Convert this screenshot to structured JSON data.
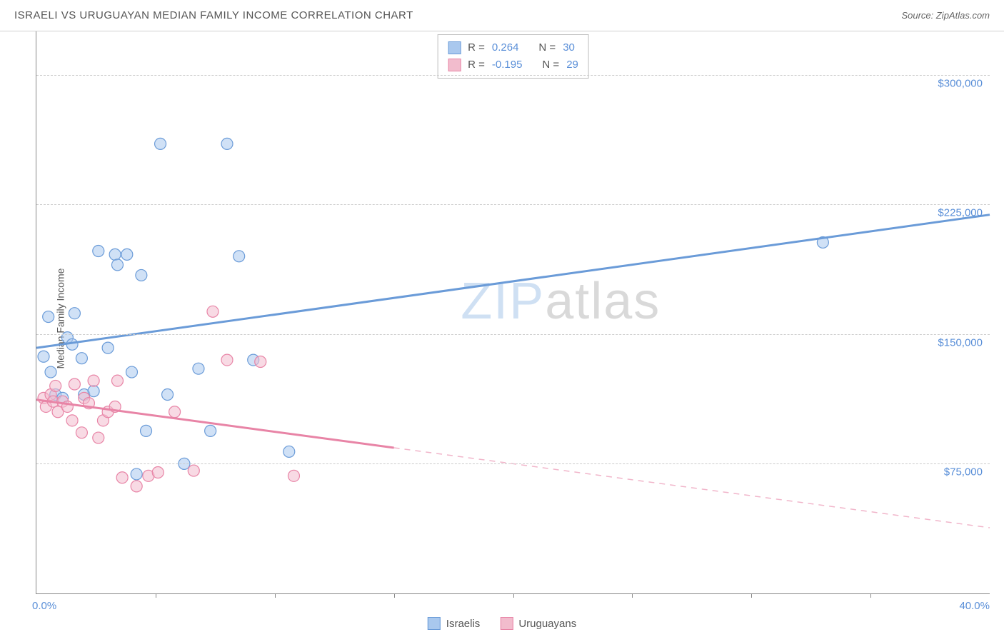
{
  "title": "ISRAELI VS URUGUAYAN MEDIAN FAMILY INCOME CORRELATION CHART",
  "source": "Source: ZipAtlas.com",
  "ylabel": "Median Family Income",
  "watermark": {
    "part1": "ZIP",
    "part2": "atlas"
  },
  "chart": {
    "type": "scatter-correlation",
    "background_color": "#ffffff",
    "grid_color": "#cccccc",
    "axis_color": "#888888",
    "label_color": "#555555",
    "tick_value_color": "#5a8fd8",
    "xlim": [
      0,
      40
    ],
    "ylim": [
      0,
      325000
    ],
    "x_unit": "%",
    "y_unit": "$",
    "point_radius": 8,
    "point_opacity": 0.55,
    "line_width": 3,
    "yticks": [
      {
        "value": 75000,
        "label": "$75,000"
      },
      {
        "value": 150000,
        "label": "$150,000"
      },
      {
        "value": 225000,
        "label": "$225,000"
      },
      {
        "value": 300000,
        "label": "$300,000"
      }
    ],
    "xtick_positions": [
      5,
      10,
      15,
      20,
      25,
      30,
      35
    ],
    "xaxis_start_label": "0.0%",
    "xaxis_end_label": "40.0%",
    "series": [
      {
        "name": "Israelis",
        "color_fill": "#a9c8ee",
        "color_stroke": "#6a9bd8",
        "r_value": "0.264",
        "n_value": "30",
        "trend": {
          "x1": 0,
          "y1": 142000,
          "x2": 40,
          "y2": 219000,
          "solid_end_x": 40
        },
        "points": [
          [
            0.3,
            137000
          ],
          [
            0.5,
            160000
          ],
          [
            0.6,
            128000
          ],
          [
            0.8,
            115000
          ],
          [
            1.1,
            113000
          ],
          [
            1.3,
            148000
          ],
          [
            1.6,
            162000
          ],
          [
            1.5,
            144000
          ],
          [
            1.9,
            136000
          ],
          [
            2.0,
            115000
          ],
          [
            2.6,
            198000
          ],
          [
            2.4,
            117000
          ],
          [
            3.0,
            142000
          ],
          [
            3.3,
            196000
          ],
          [
            3.4,
            190000
          ],
          [
            3.8,
            196000
          ],
          [
            4.0,
            128000
          ],
          [
            4.2,
            69000
          ],
          [
            4.4,
            184000
          ],
          [
            4.6,
            94000
          ],
          [
            5.2,
            260000
          ],
          [
            5.5,
            115000
          ],
          [
            6.2,
            75000
          ],
          [
            6.8,
            130000
          ],
          [
            7.3,
            94000
          ],
          [
            8.0,
            260000
          ],
          [
            8.5,
            195000
          ],
          [
            9.1,
            135000
          ],
          [
            10.6,
            82000
          ],
          [
            33.0,
            203000
          ]
        ]
      },
      {
        "name": "Uruguayans",
        "color_fill": "#f2bccd",
        "color_stroke": "#e884a6",
        "r_value": "-0.195",
        "n_value": "29",
        "trend": {
          "x1": 0,
          "y1": 112000,
          "x2": 40,
          "y2": 38000,
          "solid_end_x": 15
        },
        "points": [
          [
            0.3,
            113000
          ],
          [
            0.4,
            108000
          ],
          [
            0.6,
            115000
          ],
          [
            0.7,
            111000
          ],
          [
            0.8,
            120000
          ],
          [
            0.9,
            105000
          ],
          [
            1.1,
            111000
          ],
          [
            1.3,
            108000
          ],
          [
            1.5,
            100000
          ],
          [
            1.6,
            121000
          ],
          [
            1.9,
            93000
          ],
          [
            2.0,
            113000
          ],
          [
            2.2,
            110000
          ],
          [
            2.4,
            123000
          ],
          [
            2.6,
            90000
          ],
          [
            2.8,
            100000
          ],
          [
            3.0,
            105000
          ],
          [
            3.3,
            108000
          ],
          [
            3.4,
            123000
          ],
          [
            3.6,
            67000
          ],
          [
            4.2,
            62000
          ],
          [
            4.7,
            68000
          ],
          [
            5.1,
            70000
          ],
          [
            5.8,
            105000
          ],
          [
            6.6,
            71000
          ],
          [
            7.4,
            163000
          ],
          [
            8.0,
            135000
          ],
          [
            9.4,
            134000
          ],
          [
            10.8,
            68000
          ]
        ]
      }
    ]
  },
  "stats_labels": {
    "r": "R =",
    "n": "N ="
  },
  "legend": {
    "item1": "Israelis",
    "item2": "Uruguayans"
  }
}
